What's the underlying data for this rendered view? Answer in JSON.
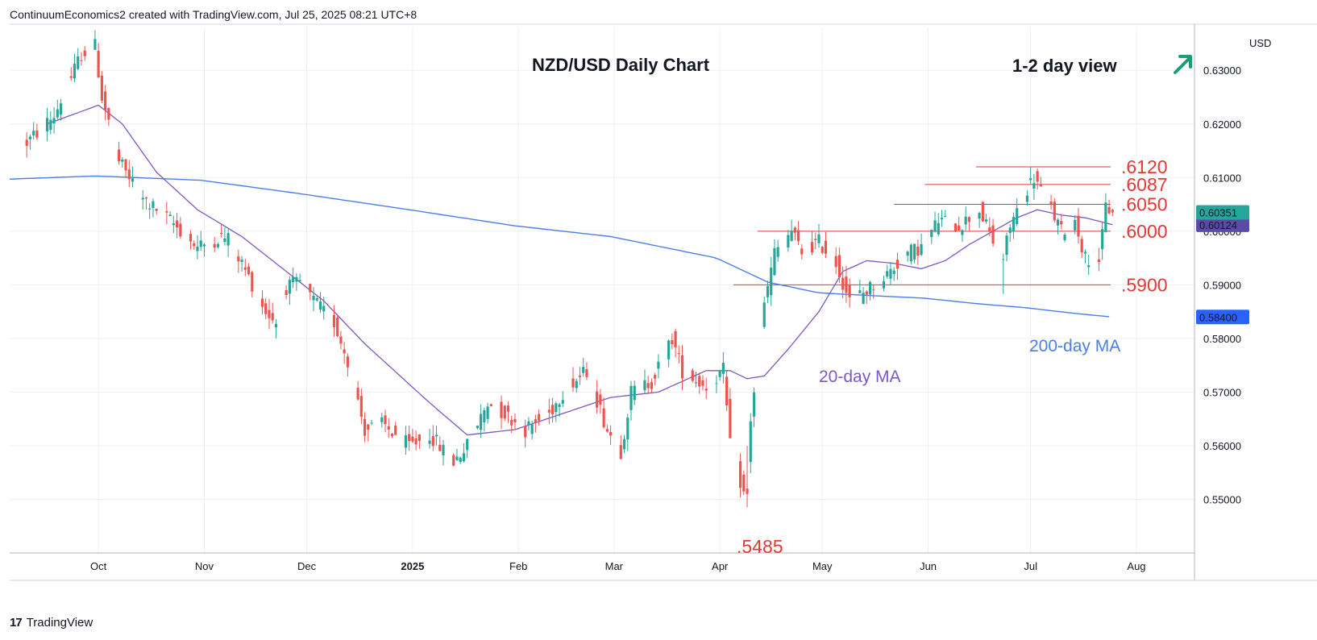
{
  "header": {
    "caption": "ContinuumEconomics2 created with TradingView.com, Jul 25, 2025 08:21 UTC+8"
  },
  "footer": {
    "brand": "TradingView",
    "logo_glyph": "17"
  },
  "currency": "USD",
  "title": "NZD/USD Daily Chart",
  "view": {
    "label": "1-2 day view",
    "arrow_icon": "arrow-up-right-icon",
    "arrow_color": "#1b9e77"
  },
  "colors": {
    "up": "#26a69a",
    "down": "#ef5350",
    "ma20": "#7e57c2",
    "ma200": "#4c7ee8",
    "levels": "#e53935",
    "price_tag": "#26a69a",
    "ma20_tag": "#5b4aa8",
    "ma200_tag": "#2962ff"
  },
  "chart_data": {
    "type": "candlestick",
    "title": "NZD/USD Daily Chart",
    "x_tick_labels": [
      "Oct",
      "Nov",
      "Dec",
      "2025",
      "Feb",
      "Mar",
      "Apr",
      "May",
      "Jun",
      "Jul",
      "Aug"
    ],
    "y_tick_labels": [
      "0.63000",
      "0.62000",
      "0.61000",
      "0.60000",
      "0.59000",
      "0.58000",
      "0.57000",
      "0.56000",
      "0.55000"
    ],
    "ylim": [
      0.54,
      0.638
    ],
    "grid": true,
    "anchors": [
      [
        "2024-09-10",
        0.6165
      ],
      [
        "2024-09-18",
        0.6215
      ],
      [
        "2024-09-26",
        0.633
      ],
      [
        "2024-09-30",
        0.6345
      ],
      [
        "2024-10-02",
        0.625
      ],
      [
        "2024-10-07",
        0.613
      ],
      [
        "2024-10-14",
        0.606
      ],
      [
        "2024-10-22",
        0.602
      ],
      [
        "2024-10-30",
        0.597
      ],
      [
        "2024-11-06",
        0.599
      ],
      [
        "2024-11-08",
        0.5985
      ],
      [
        "2024-11-12",
        0.594
      ],
      [
        "2024-11-19",
        0.585
      ],
      [
        "2024-11-22",
        0.583
      ],
      [
        "2024-11-25",
        0.5895
      ],
      [
        "2024-11-29",
        0.5905
      ],
      [
        "2024-12-03",
        0.587
      ],
      [
        "2024-12-09",
        0.583
      ],
      [
        "2024-12-13",
        0.576
      ],
      [
        "2024-12-18",
        0.563
      ],
      [
        "2024-12-23",
        0.564
      ],
      [
        "2024-12-31",
        0.56
      ],
      [
        "2025-01-06",
        0.562
      ],
      [
        "2025-01-13",
        0.557
      ],
      [
        "2025-01-17",
        0.56
      ],
      [
        "2025-01-23",
        0.568
      ],
      [
        "2025-01-28",
        0.566
      ],
      [
        "2025-02-03",
        0.563
      ],
      [
        "2025-02-10",
        0.566
      ],
      [
        "2025-02-14",
        0.57
      ],
      [
        "2025-02-21",
        0.574
      ],
      [
        "2025-02-27",
        0.563
      ],
      [
        "2025-03-03",
        0.559
      ],
      [
        "2025-03-06",
        0.57
      ],
      [
        "2025-03-12",
        0.572
      ],
      [
        "2025-03-18",
        0.58
      ],
      [
        "2025-03-21",
        0.574
      ],
      [
        "2025-03-28",
        0.571
      ],
      [
        "2025-04-02",
        0.574
      ],
      [
        "2025-04-04",
        0.56
      ],
      [
        "2025-04-08",
        0.551
      ],
      [
        "2025-04-10",
        0.565
      ],
      [
        "2025-04-14",
        0.586
      ],
      [
        "2025-04-17",
        0.596
      ],
      [
        "2025-04-22",
        0.6
      ],
      [
        "2025-04-25",
        0.596
      ],
      [
        "2025-04-30",
        0.598
      ],
      [
        "2025-05-05",
        0.594
      ],
      [
        "2025-05-09",
        0.587
      ],
      [
        "2025-05-14",
        0.589
      ],
      [
        "2025-05-20",
        0.592
      ],
      [
        "2025-05-26",
        0.596
      ],
      [
        "2025-05-30",
        0.597
      ],
      [
        "2025-06-04",
        0.602
      ],
      [
        "2025-06-10",
        0.601
      ],
      [
        "2025-06-16",
        0.604
      ],
      [
        "2025-06-20",
        0.598
      ],
      [
        "2025-06-23",
        0.595
      ],
      [
        "2025-06-25",
        0.601
      ],
      [
        "2025-06-30",
        0.608
      ],
      [
        "2025-07-02",
        0.61
      ],
      [
        "2025-07-07",
        0.604
      ],
      [
        "2025-07-10",
        0.6
      ],
      [
        "2025-07-14",
        0.602
      ],
      [
        "2025-07-17",
        0.595
      ],
      [
        "2025-07-21",
        0.595
      ],
      [
        "2025-07-22",
        0.599
      ],
      [
        "2025-07-23",
        0.6045
      ],
      [
        "2025-07-24",
        0.604
      ],
      [
        "2025-07-25",
        0.6035
      ]
    ],
    "ma20_anchors": [
      [
        "2024-09-16",
        0.62
      ],
      [
        "2024-10-01",
        0.6235
      ],
      [
        "2024-10-08",
        0.62
      ],
      [
        "2024-10-18",
        0.611
      ],
      [
        "2024-10-30",
        0.604
      ],
      [
        "2024-11-12",
        0.599
      ],
      [
        "2024-11-22",
        0.594
      ],
      [
        "2024-12-06",
        0.587
      ],
      [
        "2024-12-18",
        0.579
      ],
      [
        "2025-01-06",
        0.568
      ],
      [
        "2025-01-17",
        0.562
      ],
      [
        "2025-01-31",
        0.563
      ],
      [
        "2025-02-14",
        0.566
      ],
      [
        "2025-02-28",
        0.569
      ],
      [
        "2025-03-14",
        0.57
      ],
      [
        "2025-03-28",
        0.574
      ],
      [
        "2025-04-04",
        0.574
      ],
      [
        "2025-04-09",
        0.5725
      ],
      [
        "2025-04-14",
        0.573
      ],
      [
        "2025-04-21",
        0.578
      ],
      [
        "2025-04-30",
        0.585
      ],
      [
        "2025-05-07",
        0.5925
      ],
      [
        "2025-05-14",
        0.5945
      ],
      [
        "2025-05-22",
        0.594
      ],
      [
        "2025-05-30",
        0.593
      ],
      [
        "2025-06-06",
        0.5945
      ],
      [
        "2025-06-13",
        0.5975
      ],
      [
        "2025-06-20",
        0.6
      ],
      [
        "2025-06-27",
        0.6025
      ],
      [
        "2025-07-03",
        0.604
      ],
      [
        "2025-07-10",
        0.603
      ],
      [
        "2025-07-17",
        0.6025
      ],
      [
        "2025-07-22",
        0.6017
      ],
      [
        "2025-07-25",
        0.6012
      ]
    ],
    "ma200_anchors": [
      [
        "2024-09-05",
        0.6097
      ],
      [
        "2024-09-30",
        0.6103
      ],
      [
        "2024-10-31",
        0.6095
      ],
      [
        "2024-11-29",
        0.607
      ],
      [
        "2024-12-31",
        0.604
      ],
      [
        "2025-01-31",
        0.601
      ],
      [
        "2025-02-28",
        0.599
      ],
      [
        "2025-03-31",
        0.595
      ],
      [
        "2025-04-15",
        0.5905
      ],
      [
        "2025-04-30",
        0.5885
      ],
      [
        "2025-05-15",
        0.588
      ],
      [
        "2025-05-31",
        0.5875
      ],
      [
        "2025-06-15",
        0.5865
      ],
      [
        "2025-06-30",
        0.5857
      ],
      [
        "2025-07-15",
        0.5846
      ],
      [
        "2025-07-25",
        0.584
      ]
    ],
    "last_price": {
      "label": "0.60351"
    },
    "ma20_value": {
      "label": "0.60124"
    },
    "ma200_value": {
      "label": "0.58400"
    },
    "levels": [
      {
        "label": ".6120",
        "value": 0.612,
        "from": "2025-06-15"
      },
      {
        "label": ".6087",
        "value": 0.6087,
        "from": "2025-05-31"
      },
      {
        "label": ".6050",
        "value": 0.605,
        "from": "2025-05-22"
      },
      {
        "label": ".6000",
        "value": 0.6,
        "from": "2025-04-12"
      },
      {
        "label": ".5900",
        "value": 0.59,
        "from": "2025-04-05"
      }
    ],
    "low_label": {
      "label": ".5485",
      "date": "2025-04-09"
    },
    "annotations": {
      "ma20": "20-day MA",
      "ma200": "200-day MA"
    }
  }
}
